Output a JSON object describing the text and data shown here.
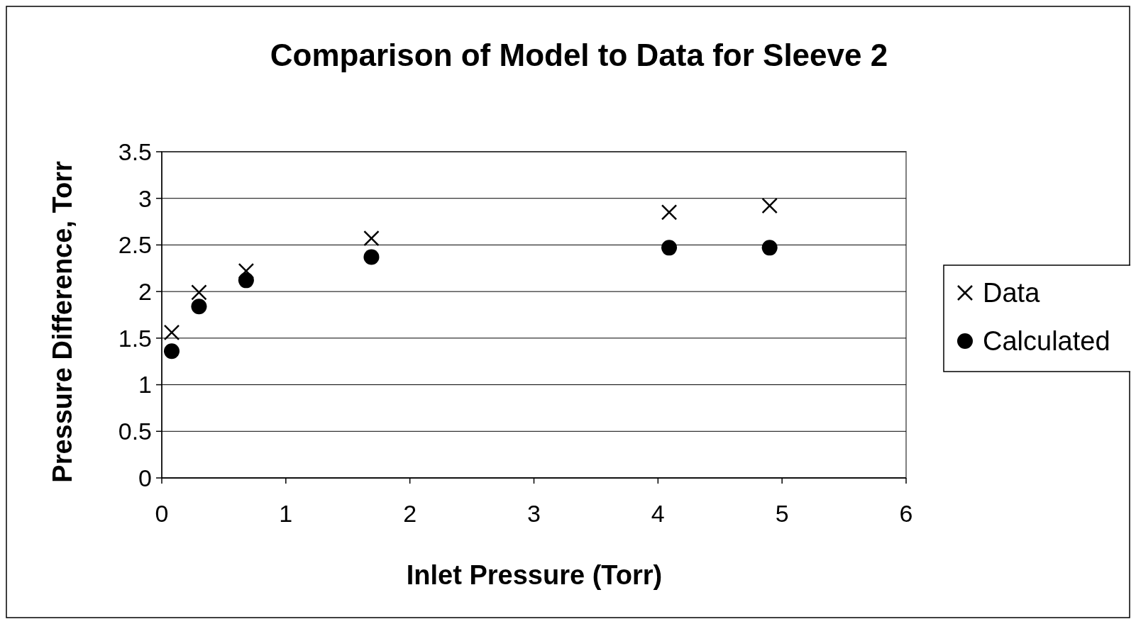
{
  "chart_data": {
    "type": "scatter",
    "title": "Comparison of Model to Data for Sleeve 2",
    "xlabel": "Inlet Pressure (Torr)",
    "ylabel": "Pressure Difference, Torr",
    "xlim": [
      0,
      6
    ],
    "xticks": [
      0,
      1,
      2,
      3,
      4,
      5,
      6
    ],
    "ylim": [
      0,
      3.5
    ],
    "yticks": [
      0,
      0.5,
      1,
      1.5,
      2,
      2.5,
      3,
      3.5
    ],
    "grid": "y",
    "legend": "right",
    "x": [
      0.08,
      0.3,
      0.68,
      1.69,
      4.09,
      4.9
    ],
    "series": [
      {
        "name": "Data",
        "color": "#000000",
        "marker": "cross",
        "values": [
          1.56,
          1.99,
          2.22,
          2.57,
          2.85,
          2.92
        ]
      },
      {
        "name": "Calculated",
        "color": "#000000",
        "marker": "circle",
        "values": [
          1.36,
          1.84,
          2.12,
          2.37,
          2.47,
          2.47
        ]
      }
    ]
  }
}
